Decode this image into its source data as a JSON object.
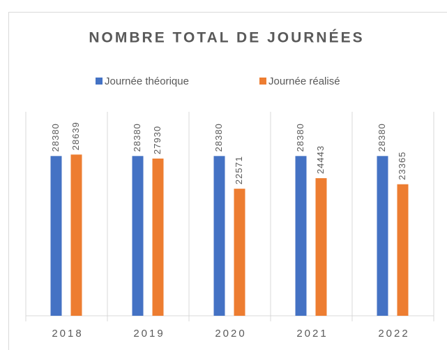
{
  "chart_data": {
    "type": "bar",
    "title": "NOMBRE TOTAL DE JOURNÉES",
    "categories": [
      "2018",
      "2019",
      "2020",
      "2021",
      "2022"
    ],
    "series": [
      {
        "name": "Journée théorique",
        "color": "#4472c4",
        "values": [
          28380,
          28380,
          28380,
          28380,
          28380
        ]
      },
      {
        "name": "Journée réalisé",
        "color": "#ed7d31",
        "values": [
          28639,
          27930,
          22571,
          24443,
          23365
        ]
      }
    ],
    "ylim": [
      0,
      35000
    ],
    "legend": "top"
  }
}
